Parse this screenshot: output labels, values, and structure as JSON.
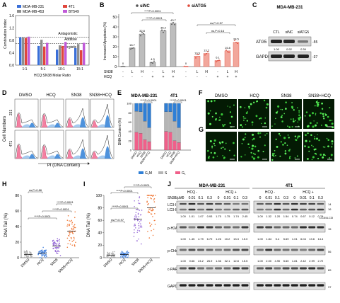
{
  "panels": {
    "A": {
      "letter": "A",
      "ylabel": "Combination Index",
      "xlabel": "HCQ:SN38 Molar Ratio",
      "yticks": [
        "1.6",
        "1.2",
        "0.8",
        "0.4",
        "0.0"
      ],
      "threshold_labels": [
        "Antagonistic",
        "Additive",
        "Synergistic"
      ],
      "legend": [
        "MDA-MB-231",
        "4T1",
        "MDA-MB-453",
        "BT549"
      ],
      "legend_colors": [
        "#3a6fd8",
        "#e0463c",
        "#8f8f8f",
        "#c05ad8"
      ],
      "chart_data": {
        "type": "bar",
        "categories": [
          "1:1",
          "5:1",
          "10:1",
          "15:1"
        ],
        "series": [
          {
            "name": "MDA-MB-231",
            "values": [
              0.9,
              0.62,
              0.5,
              0.55
            ]
          },
          {
            "name": "MDA-MB-453",
            "values": [
              0.9,
              0.82,
              0.64,
              0.68
            ]
          },
          {
            "name": "4T1",
            "values": [
              0.88,
              0.6,
              0.62,
              0.48
            ]
          },
          {
            "name": "BT549",
            "values": [
              0.92,
              0.72,
              0.75,
              0.72
            ]
          }
        ],
        "xlabel": "HCQ:SN38 Molar Ratio",
        "ylabel": "Combination Index",
        "ylim": [
          0,
          1.6
        ]
      }
    },
    "B": {
      "letter": "B",
      "legend": [
        "siNC",
        "siATG5"
      ],
      "legend_colors": [
        "#555555",
        "#e04a3a"
      ],
      "ylabel": "Increased Apoptosis (%)",
      "yticks": [
        "50",
        "40",
        "30",
        "20",
        "10",
        "0"
      ],
      "row_sn38": "SN38",
      "row_hcq": "HCQ",
      "sn38_levels": [
        "-",
        "L",
        "H",
        "-",
        "L",
        "H"
      ],
      "hcq_levels": [
        "-",
        "-",
        "-",
        "+",
        "+",
        "+"
      ],
      "stats": [
        "****P<0.0001",
        "****P<0.0001",
        "ns,P=0.57",
        "ns,P=0.16"
      ],
      "chart_data": {
        "type": "bar",
        "ylabel": "Increased Apoptosis (%)",
        "ylim": [
          0,
          50
        ],
        "series": [
          {
            "name": "siNC",
            "values": [
              0,
              18.7,
              32.8,
              4.3,
              36.2,
              43.7
            ],
            "labels": [
              "0",
              "18.7",
              "32.8",
              "4.3",
              "36.2",
              "43.7"
            ]
          },
          {
            "name": "siATG5",
            "values": [
              0,
              10.5,
              13.2,
              6.1,
              15.8,
              24.5
            ],
            "labels": [
              "0",
              "10.5",
              "13.2",
              "6.1",
              "15.8",
              "24.5"
            ]
          }
        ]
      }
    },
    "C": {
      "letter": "C",
      "title": "MDA-MB-231",
      "lanes": [
        "CTL",
        "siNC",
        "siATG5"
      ],
      "rows": [
        "ATG5",
        "GAPDH"
      ],
      "values": [
        "1.00",
        "0.92",
        "0.39"
      ],
      "mw": [
        "-55",
        "-37"
      ]
    },
    "D": {
      "letter": "D",
      "columns": [
        "DMSO",
        "HCQ",
        "SN38",
        "SN38+HCQ"
      ],
      "rows": [
        "231",
        "4T1"
      ],
      "ylabel": "Cell Numbers",
      "xlabel": "PI (DNA Content)"
    },
    "E": {
      "letter": "E",
      "groups": [
        "MDA-MB-231",
        "4T1"
      ],
      "ylabel": "DNA Content (%)",
      "yticks": [
        "100",
        "80",
        "60",
        "40",
        "20",
        "0"
      ],
      "categories": [
        "DMSO",
        "HCQ",
        "SN38",
        "SN38+HCQ"
      ],
      "stats": [
        "****P<0.0001",
        "****P<0.0001"
      ],
      "legend": [
        "G₂M",
        "S",
        "G₁"
      ],
      "legend_colors": [
        "#2f7fd6",
        "#b5b5b5",
        "#f0608a"
      ],
      "chart_data": {
        "type": "bar",
        "ylabel": "DNA Content (%)",
        "ylim": [
          0,
          100
        ],
        "categories": [
          "DMSO",
          "HCQ",
          "SN38",
          "SN38+HCQ",
          "DMSO",
          "HCQ",
          "SN38",
          "SN38+HCQ"
        ],
        "series": [
          {
            "name": "G₁",
            "values": [
              38,
              36,
              22,
              18,
              40,
              38,
              20,
              16
            ]
          },
          {
            "name": "S",
            "values": [
              45,
              46,
              40,
              30,
              42,
              44,
              42,
              32
            ]
          },
          {
            "name": "G₂M",
            "values": [
              17,
              18,
              38,
              52,
              18,
              18,
              38,
              52
            ]
          }
        ]
      }
    },
    "F": {
      "letter": "F",
      "columns": [
        "DMSO",
        "HCQ",
        "SN38",
        "SN38+HCQ"
      ]
    },
    "G": {
      "letter": "G"
    },
    "H": {
      "letter": "H",
      "ylabel": "DNA Tail (%)",
      "yticks": [
        "80",
        "60",
        "40",
        "20",
        "0"
      ],
      "stats": [
        "ns,P=0.86",
        "****P<0.0001",
        "****P<0.0001",
        "****P<0.0001"
      ],
      "chart_data": {
        "type": "scatter",
        "categories": [
          "DMSO",
          "HCQ",
          "SN38",
          "SN38+HCQ"
        ],
        "ylabel": "DNA Tail (%)",
        "ylim": [
          0,
          80
        ],
        "means": [
          4,
          6,
          15,
          34
        ]
      }
    },
    "I": {
      "letter": "I",
      "ylabel": "DNA Tail (%)",
      "yticks": [
        "100",
        "80",
        "60",
        "40",
        "20",
        "0"
      ],
      "stats": [
        "****P<0.0001",
        "****P<0.0001",
        "ns,P=0.97",
        "****P<0.0001"
      ],
      "chart_data": {
        "type": "scatter",
        "categories": [
          "DMSO",
          "HCQ",
          "SN38",
          "SN38+HCQ"
        ],
        "ylabel": "DNA Tail (%)",
        "ylim": [
          0,
          100
        ],
        "means": [
          4,
          5,
          62,
          80
        ]
      }
    },
    "J": {
      "letter": "J",
      "groups": [
        "MDA-MB-231",
        "4T1"
      ],
      "hcq_labels": [
        "HCQ -",
        "HCQ +",
        "HCQ -",
        "HCQ +"
      ],
      "sn38_label": "SN38/μM",
      "doses": [
        "0",
        "0.01",
        "0.1",
        "0.3"
      ],
      "rows": [
        "LC3-I",
        "LC3-II",
        "p-H2A.X",
        "p-Chk1",
        "c-PARP",
        "GAPDH"
      ],
      "mw": [
        "14",
        "16",
        "15",
        "56",
        "89",
        "37"
      ],
      "lc3_ratio": "LC3II/LC3I",
      "values_231": [
        [
          "1.00",
          "1.01",
          "1.07",
          "0.93",
          "1.75",
          "1.75",
          "1.74",
          "2.45"
        ],
        [
          "1.00",
          "1.45",
          "4.79",
          "6.79",
          "1.26",
          "10.2",
          "13.3",
          "15.0"
        ],
        [
          "1.00",
          "0.66",
          "24.2",
          "26.9",
          "1.36",
          "32.1",
          "12.8",
          "15.5"
        ]
      ],
      "values_4t1": [
        [
          "1.00",
          "1.32",
          "1.20",
          "1.54",
          "0.74",
          "0.67",
          "0.12",
          "0.74"
        ],
        [
          "1.00",
          "1.84",
          "5.4",
          "5.69",
          "1.01",
          "6.04",
          "13.6",
          "14.4"
        ],
        [
          "1.00",
          "2.00",
          "4.90",
          "5.60",
          "1.81",
          "2.42",
          "2.99",
          "2.72"
        ]
      ]
    }
  }
}
